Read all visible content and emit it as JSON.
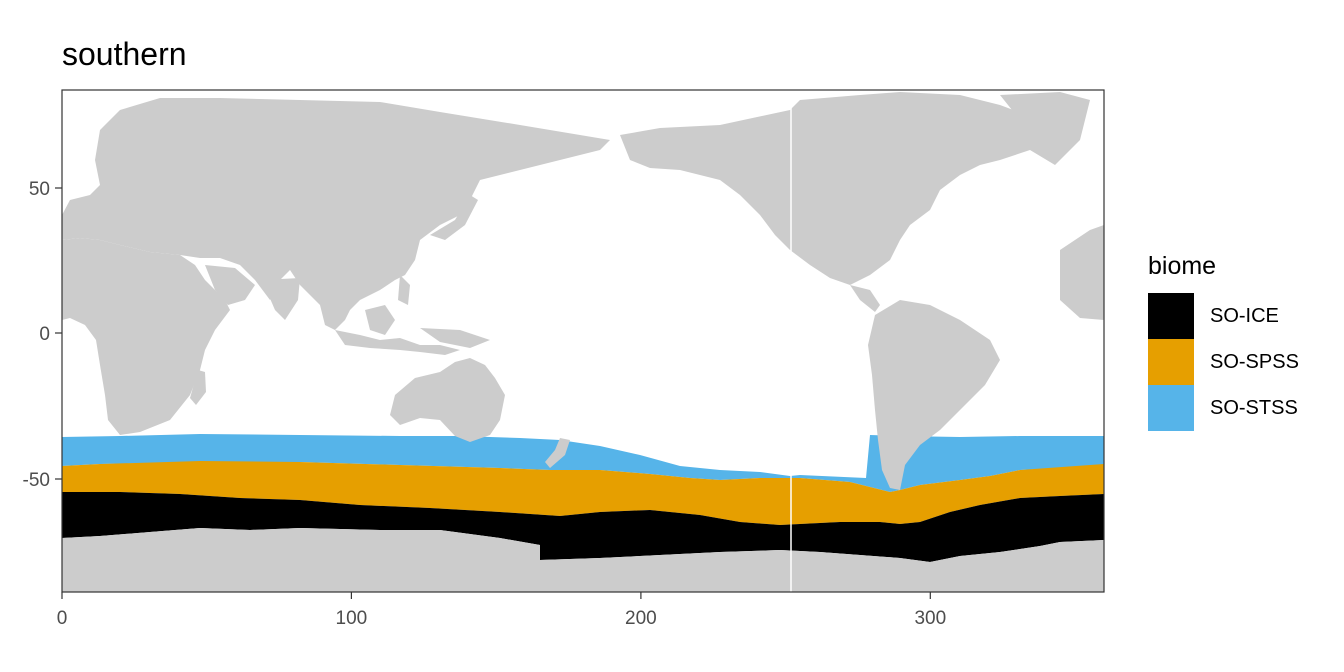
{
  "title": "southern",
  "chart_data": {
    "type": "map",
    "x_ticks": [
      0,
      100,
      200,
      300
    ],
    "y_ticks": [
      50,
      0,
      -50
    ],
    "x_tick_labels": [
      "0",
      "100",
      "200",
      "300"
    ],
    "y_tick_labels": [
      "50",
      "0",
      "-50"
    ],
    "xlim": [
      0,
      360
    ],
    "ylim": [
      -90,
      84
    ],
    "land_color": "#cccccc",
    "ocean_color": "#ffffff",
    "legend_position": "right",
    "legend": {
      "title": "biome",
      "items": [
        {
          "label": "SO-ICE",
          "color": "#000000"
        },
        {
          "label": "SO-SPSS",
          "color": "#e69f00"
        },
        {
          "label": "SO-STSS",
          "color": "#56b4e9"
        }
      ]
    }
  }
}
